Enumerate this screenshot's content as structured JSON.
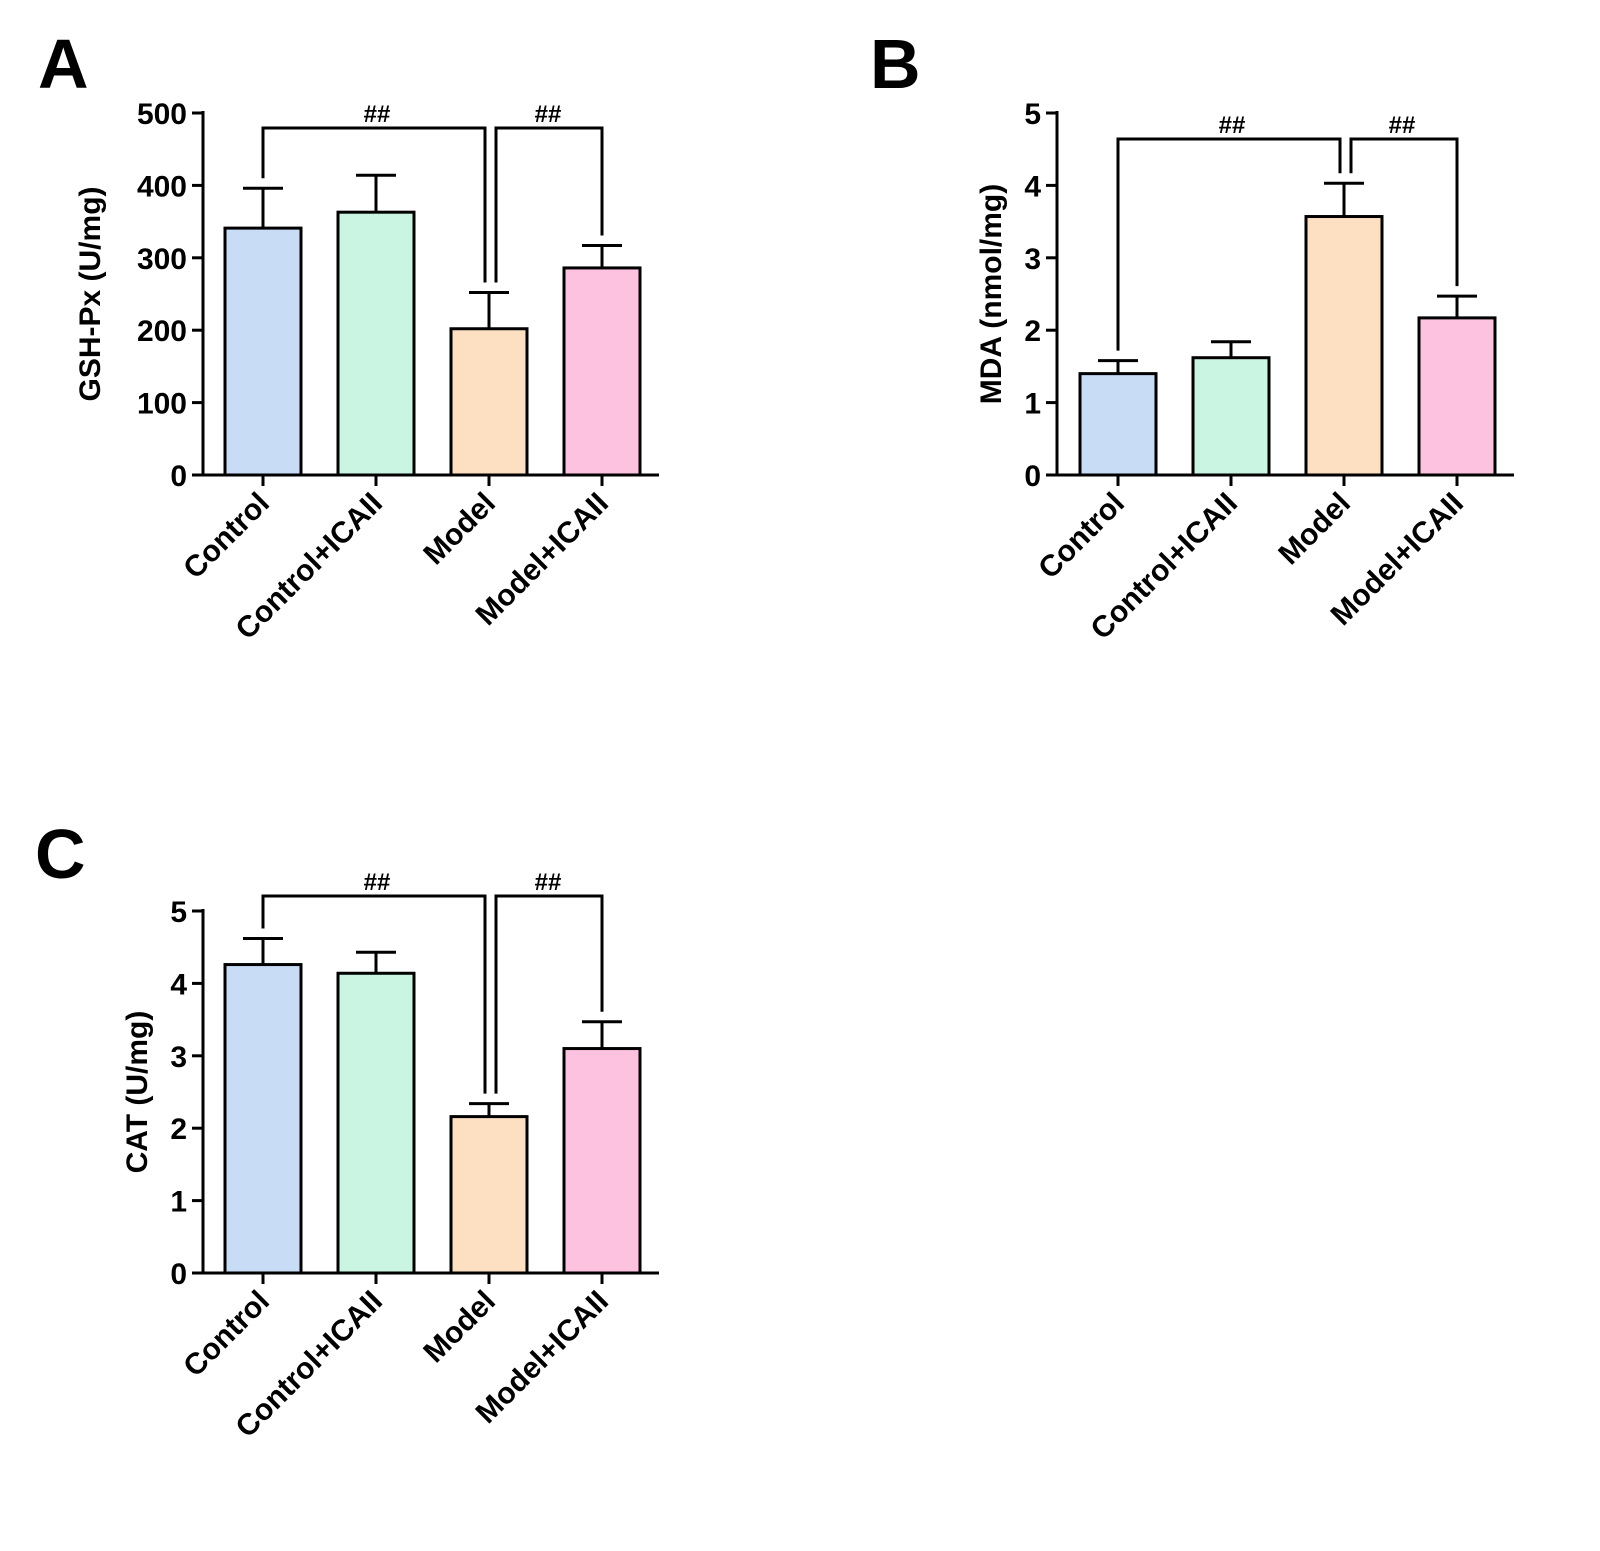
{
  "chart_data": [
    {
      "panel": "A",
      "type": "bar",
      "categories": [
        "Control",
        "Control+ICAII",
        "Model",
        "Model+ICAII"
      ],
      "values": [
        341,
        363,
        202,
        286
      ],
      "errors": [
        55,
        51,
        50,
        31
      ],
      "colors": [
        "#c9dcf5",
        "#c9f5e2",
        "#fde0c2",
        "#fcc2df"
      ],
      "ylabel": "GSH-Px (U/mg)",
      "ylim": [
        0,
        500
      ],
      "yticks": [
        0,
        100,
        200,
        300,
        400,
        500
      ],
      "significance": [
        {
          "from": 0,
          "to": 2,
          "label": "##"
        },
        {
          "from": 2,
          "to": 3,
          "label": "##"
        }
      ]
    },
    {
      "panel": "B",
      "type": "bar",
      "categories": [
        "Control",
        "Control+ICAII",
        "Model",
        "Model+ICAII"
      ],
      "values": [
        1.4,
        1.62,
        3.57,
        2.17
      ],
      "errors": [
        0.18,
        0.22,
        0.46,
        0.3
      ],
      "colors": [
        "#c9dcf5",
        "#c9f5e2",
        "#fde0c2",
        "#fcc2df"
      ],
      "ylabel": "MDA (nmol/mg)",
      "ylim": [
        0,
        5
      ],
      "yticks": [
        0,
        1,
        2,
        3,
        4,
        5
      ],
      "significance": [
        {
          "from": 0,
          "to": 2,
          "label": "##"
        },
        {
          "from": 2,
          "to": 3,
          "label": "##"
        }
      ]
    },
    {
      "panel": "C",
      "type": "bar",
      "categories": [
        "Control",
        "Control+ICAII",
        "Model",
        "Model+ICAII"
      ],
      "values": [
        4.26,
        4.14,
        2.16,
        3.1
      ],
      "errors": [
        0.36,
        0.29,
        0.18,
        0.37
      ],
      "colors": [
        "#c9dcf5",
        "#c9f5e2",
        "#fde0c2",
        "#fcc2df"
      ],
      "ylabel": "CAT (U/mg)",
      "ylim": [
        0,
        5
      ],
      "yticks": [
        0,
        1,
        2,
        3,
        4,
        5
      ],
      "significance": [
        {
          "from": 0,
          "to": 2,
          "label": "##"
        },
        {
          "from": 2,
          "to": 3,
          "label": "##"
        }
      ]
    }
  ]
}
